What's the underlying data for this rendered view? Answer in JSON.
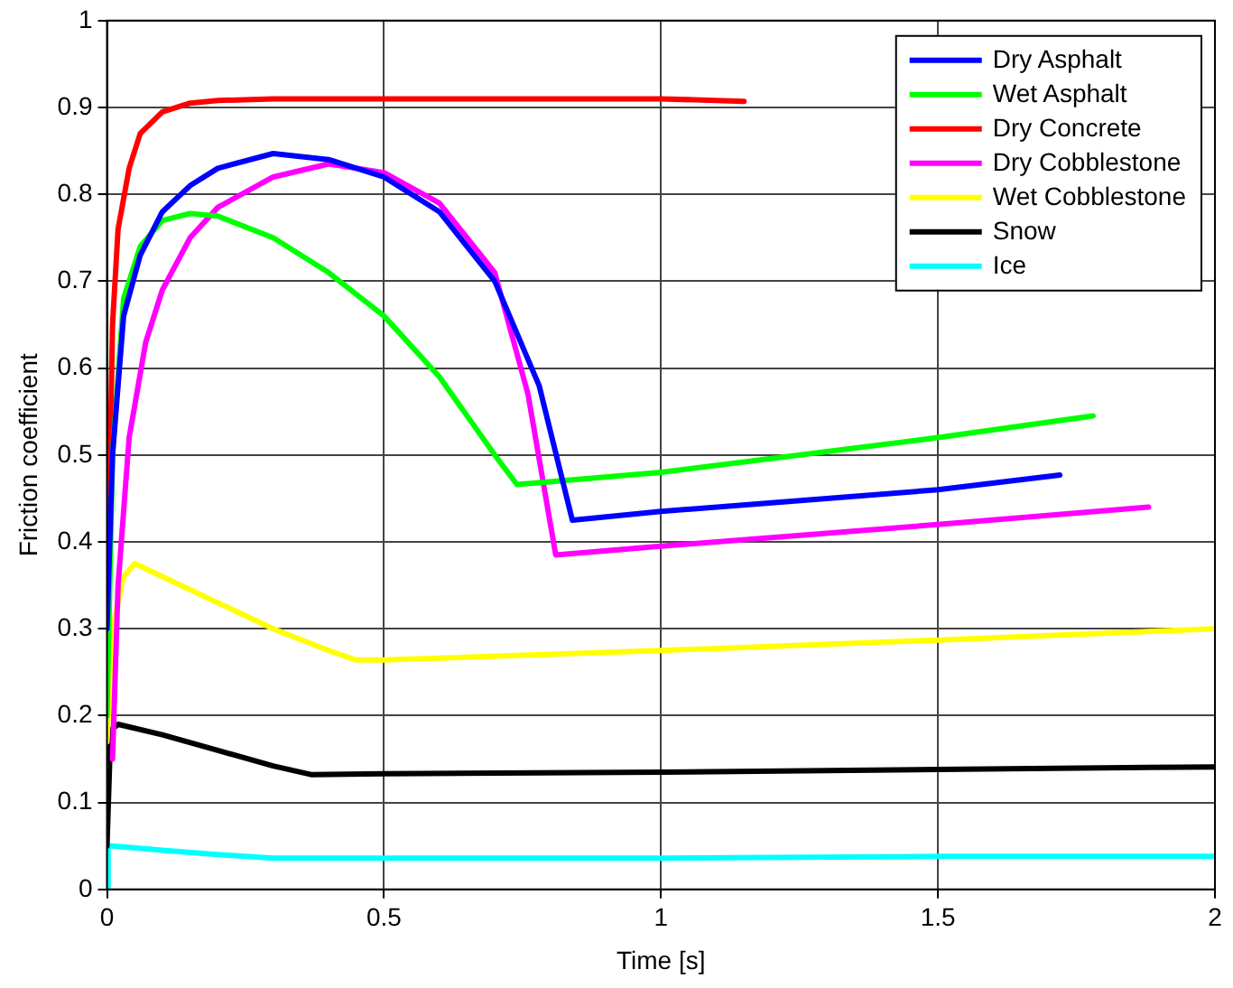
{
  "chart_data": {
    "type": "line",
    "xlabel": "Time [s]",
    "ylabel": "Friction coefficient",
    "xlim": [
      0,
      2
    ],
    "xticks": [
      0,
      0.5,
      1,
      1.5,
      2
    ],
    "ylim": [
      0,
      1
    ],
    "yticks": [
      0,
      0.1,
      0.2,
      0.3,
      0.4,
      0.5,
      0.6,
      0.7,
      0.8,
      0.9,
      1
    ],
    "grid": true,
    "legend": "top right",
    "marker": "none",
    "line_style": "solid",
    "series": [
      {
        "name": "Dry Asphalt",
        "color": "#0000ff",
        "x": [
          0,
          0.01,
          0.03,
          0.06,
          0.1,
          0.15,
          0.2,
          0.3,
          0.4,
          0.5,
          0.6,
          0.7,
          0.78,
          0.84,
          1.0,
          1.2,
          1.5,
          1.72
        ],
        "values": [
          0.3,
          0.5,
          0.66,
          0.73,
          0.78,
          0.81,
          0.83,
          0.847,
          0.84,
          0.82,
          0.78,
          0.7,
          0.58,
          0.425,
          0.435,
          0.445,
          0.46,
          0.477
        ]
      },
      {
        "name": "Wet Asphalt",
        "color": "#00ff00",
        "x": [
          0,
          0.01,
          0.03,
          0.06,
          0.1,
          0.15,
          0.2,
          0.3,
          0.4,
          0.5,
          0.6,
          0.7,
          0.74,
          1.0,
          1.5,
          1.78
        ],
        "values": [
          0.2,
          0.5,
          0.68,
          0.74,
          0.77,
          0.778,
          0.775,
          0.75,
          0.71,
          0.66,
          0.59,
          0.5,
          0.466,
          0.48,
          0.52,
          0.545
        ]
      },
      {
        "name": "Dry Concrete",
        "color": "#ff0000",
        "x": [
          0,
          0.01,
          0.02,
          0.04,
          0.06,
          0.1,
          0.15,
          0.2,
          0.3,
          0.5,
          1.0,
          1.15
        ],
        "values": [
          0.3,
          0.65,
          0.76,
          0.83,
          0.87,
          0.895,
          0.905,
          0.908,
          0.91,
          0.91,
          0.91,
          0.907
        ]
      },
      {
        "name": "Dry Cobblestone",
        "color": "#ff00ff",
        "x": [
          0.01,
          0.02,
          0.04,
          0.07,
          0.1,
          0.15,
          0.2,
          0.3,
          0.4,
          0.5,
          0.6,
          0.7,
          0.76,
          0.81,
          1.0,
          1.5,
          1.88
        ],
        "values": [
          0.15,
          0.35,
          0.52,
          0.63,
          0.69,
          0.75,
          0.785,
          0.82,
          0.835,
          0.825,
          0.79,
          0.71,
          0.57,
          0.385,
          0.395,
          0.42,
          0.44
        ]
      },
      {
        "name": "Wet Cobblestone",
        "color": "#ffff00",
        "x": [
          0,
          0.01,
          0.03,
          0.05,
          0.1,
          0.2,
          0.3,
          0.4,
          0.45,
          0.5,
          1.0,
          1.5,
          2.0
        ],
        "values": [
          0.17,
          0.3,
          0.36,
          0.375,
          0.36,
          0.33,
          0.3,
          0.275,
          0.264,
          0.264,
          0.275,
          0.287,
          0.3
        ]
      },
      {
        "name": "Snow",
        "color": "#000000",
        "x": [
          0,
          0.005,
          0.01,
          0.02,
          0.1,
          0.2,
          0.3,
          0.37,
          0.5,
          1.0,
          1.5,
          2.0
        ],
        "values": [
          0.05,
          0.15,
          0.185,
          0.19,
          0.178,
          0.16,
          0.142,
          0.132,
          0.133,
          0.135,
          0.138,
          0.141
        ]
      },
      {
        "name": "Ice",
        "color": "#00ffff",
        "x": [
          0,
          0.002,
          0.01,
          0.1,
          0.2,
          0.3,
          0.5,
          1.0,
          1.5,
          2.0
        ],
        "values": [
          0,
          0.05,
          0.05,
          0.045,
          0.04,
          0.036,
          0.036,
          0.036,
          0.038,
          0.038
        ]
      }
    ]
  }
}
